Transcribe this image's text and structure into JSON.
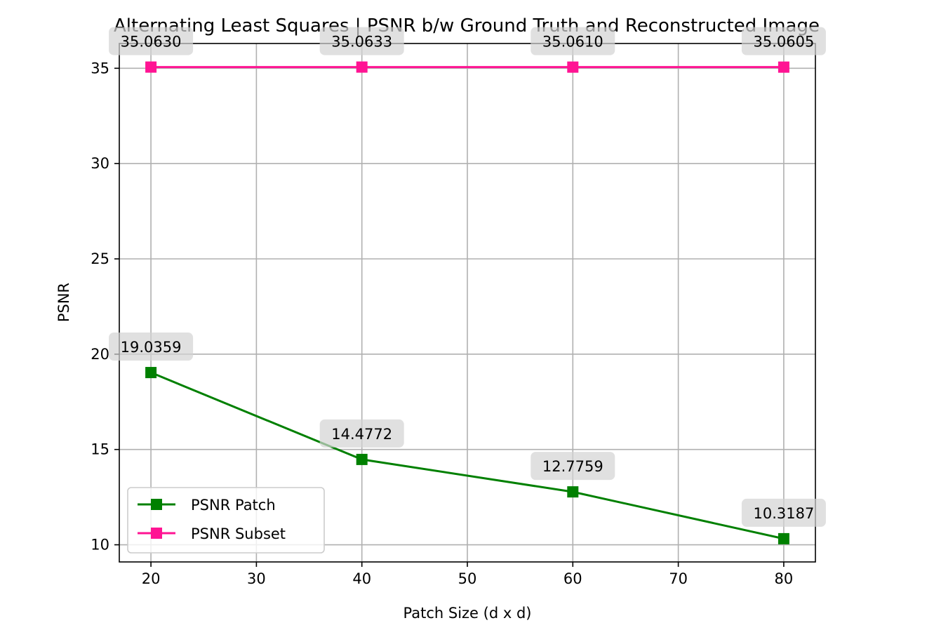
{
  "chart_data": {
    "type": "line",
    "title": "Alternating Least Squares | PSNR b/w Ground Truth and Reconstructed Image",
    "xlabel": "Patch Size (d x d)",
    "ylabel": "PSNR",
    "x": [
      20,
      40,
      60,
      80
    ],
    "xlim": [
      17,
      83
    ],
    "ylim": [
      9.1,
      36.3
    ],
    "xticks": [
      20,
      30,
      40,
      50,
      60,
      70,
      80
    ],
    "yticks": [
      10,
      15,
      20,
      25,
      30,
      35
    ],
    "grid": true,
    "legend_position": "lower-left",
    "series": [
      {
        "name": "PSNR Patch",
        "color": "#008000",
        "marker": "square",
        "values": [
          19.0359,
          14.4772,
          12.7759,
          10.3187
        ],
        "labels": [
          "19.0359",
          "14.4772",
          "12.7759",
          "10.3187"
        ]
      },
      {
        "name": "PSNR Subset",
        "color": "#ff1493",
        "marker": "square",
        "values": [
          35.063,
          35.0633,
          35.061,
          35.0605
        ],
        "labels": [
          "35.0630",
          "35.0633",
          "35.0610",
          "35.0605"
        ]
      }
    ]
  }
}
